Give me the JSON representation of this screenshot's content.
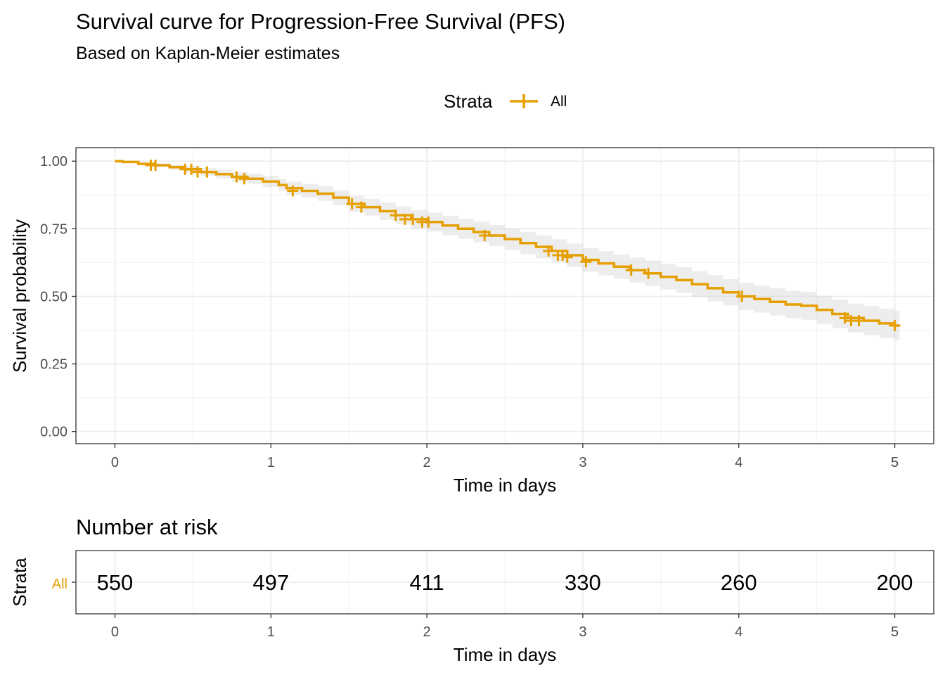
{
  "chart_data": [
    {
      "type": "line",
      "title": "Survival curve for Progression-Free Survival (PFS)",
      "subtitle": "Based on Kaplan-Meier estimates",
      "xlabel": "Time in days",
      "ylabel": "Survival probability",
      "xlim": [
        -0.25,
        5.25
      ],
      "ylim": [
        -0.045,
        1.05
      ],
      "x_ticks": [
        0,
        1,
        2,
        3,
        4,
        5
      ],
      "x_tick_labels": [
        "0",
        "1",
        "2",
        "3",
        "4",
        "5"
      ],
      "y_ticks": [
        0,
        0.25,
        0.5,
        0.75,
        1
      ],
      "y_tick_labels": [
        "0.00",
        "0.25",
        "0.50",
        "0.75",
        "1.00"
      ],
      "grid": true,
      "legend": {
        "title": "Strata",
        "position": "top",
        "entries": [
          "All"
        ]
      },
      "series": [
        {
          "name": "All",
          "color": "#E69F00",
          "step": true,
          "x": [
            0,
            0.05,
            0.15,
            0.25,
            0.35,
            0.45,
            0.55,
            0.65,
            0.75,
            0.85,
            0.95,
            1.05,
            1.1,
            1.2,
            1.3,
            1.4,
            1.5,
            1.6,
            1.7,
            1.8,
            1.9,
            2.0,
            2.1,
            2.2,
            2.3,
            2.4,
            2.5,
            2.6,
            2.7,
            2.8,
            2.9,
            3.0,
            3.1,
            3.2,
            3.3,
            3.4,
            3.5,
            3.6,
            3.7,
            3.8,
            3.9,
            4.0,
            4.1,
            4.2,
            4.3,
            4.4,
            4.5,
            4.6,
            4.7,
            4.8,
            4.9,
            5.0
          ],
          "y": [
            1.0,
            0.997,
            0.99,
            0.985,
            0.978,
            0.97,
            0.96,
            0.952,
            0.942,
            0.935,
            0.925,
            0.912,
            0.9,
            0.89,
            0.88,
            0.865,
            0.842,
            0.83,
            0.815,
            0.8,
            0.785,
            0.775,
            0.762,
            0.75,
            0.738,
            0.725,
            0.712,
            0.697,
            0.683,
            0.668,
            0.652,
            0.635,
            0.622,
            0.61,
            0.597,
            0.585,
            0.572,
            0.56,
            0.545,
            0.53,
            0.515,
            0.5,
            0.49,
            0.48,
            0.47,
            0.465,
            0.45,
            0.435,
            0.42,
            0.41,
            0.4,
            0.392
          ],
          "ci_lower": [
            1.0,
            0.995,
            0.985,
            0.977,
            0.968,
            0.958,
            0.946,
            0.936,
            0.924,
            0.916,
            0.904,
            0.89,
            0.876,
            0.865,
            0.853,
            0.837,
            0.812,
            0.799,
            0.783,
            0.767,
            0.751,
            0.74,
            0.726,
            0.713,
            0.7,
            0.686,
            0.672,
            0.656,
            0.641,
            0.625,
            0.609,
            0.591,
            0.577,
            0.565,
            0.551,
            0.538,
            0.525,
            0.512,
            0.497,
            0.481,
            0.466,
            0.45,
            0.44,
            0.429,
            0.419,
            0.413,
            0.398,
            0.382,
            0.367,
            0.356,
            0.346,
            0.337
          ],
          "ci_upper": [
            1.0,
            0.999,
            0.995,
            0.993,
            0.988,
            0.982,
            0.974,
            0.968,
            0.96,
            0.954,
            0.946,
            0.934,
            0.924,
            0.915,
            0.907,
            0.893,
            0.872,
            0.861,
            0.847,
            0.833,
            0.819,
            0.81,
            0.798,
            0.787,
            0.776,
            0.764,
            0.752,
            0.738,
            0.725,
            0.711,
            0.695,
            0.679,
            0.667,
            0.655,
            0.643,
            0.632,
            0.619,
            0.608,
            0.593,
            0.579,
            0.564,
            0.55,
            0.54,
            0.531,
            0.521,
            0.517,
            0.502,
            0.488,
            0.473,
            0.464,
            0.454,
            0.447
          ],
          "censor_x": [
            0.23,
            0.26,
            0.45,
            0.49,
            0.53,
            0.59,
            0.78,
            0.83,
            1.14,
            1.52,
            1.58,
            1.8,
            1.86,
            1.91,
            1.97,
            2.01,
            2.37,
            2.78,
            2.84,
            2.87,
            2.9,
            3.02,
            3.31,
            3.42,
            4.02,
            4.68,
            4.72,
            4.77,
            5.0
          ],
          "censor_y": [
            0.985,
            0.985,
            0.97,
            0.97,
            0.96,
            0.96,
            0.942,
            0.935,
            0.89,
            0.842,
            0.83,
            0.8,
            0.785,
            0.785,
            0.775,
            0.775,
            0.725,
            0.668,
            0.652,
            0.652,
            0.645,
            0.628,
            0.597,
            0.585,
            0.5,
            0.42,
            0.41,
            0.41,
            0.392
          ]
        }
      ]
    },
    {
      "type": "table",
      "title": "Number at risk",
      "xlabel": "Time in days",
      "ylabel": "Strata",
      "xlim": [
        -0.25,
        5.25
      ],
      "x_ticks": [
        0,
        1,
        2,
        3,
        4,
        5
      ],
      "x_tick_labels": [
        "0",
        "1",
        "2",
        "3",
        "4",
        "5"
      ],
      "rows": [
        {
          "strata": "All",
          "color": "#E69F00",
          "x": [
            0,
            1,
            2,
            3,
            4,
            5
          ],
          "values": [
            "550",
            "497",
            "411",
            "330",
            "260",
            "200"
          ]
        }
      ]
    }
  ]
}
